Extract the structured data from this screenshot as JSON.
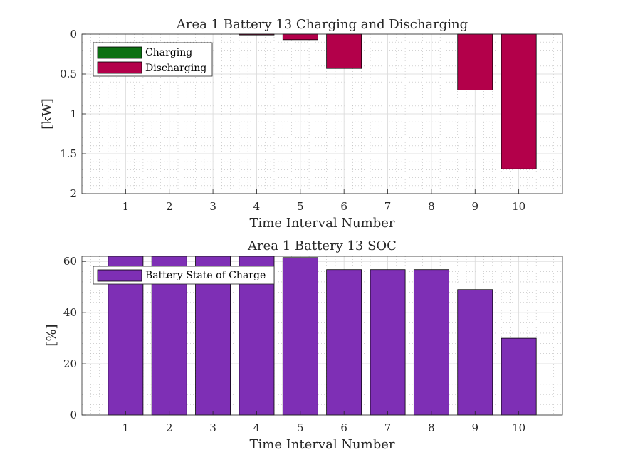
{
  "colors": {
    "charging": "#0c7012",
    "discharging": "#b3004a",
    "soc": "#7e2fb5",
    "axis": "#262626",
    "grid_major": "#d9d9d9",
    "grid_minor": "#b8b8b8",
    "background": "#ffffff"
  },
  "chart_data": [
    {
      "type": "bar",
      "title": "Area 1 Battery 13 Charging and Discharging",
      "xlabel": "Time Interval Number",
      "ylabel": "[kW]",
      "y_direction": "reversed",
      "xlim": [
        0,
        11
      ],
      "ylim": [
        0,
        2
      ],
      "x_ticks": [
        "1",
        "2",
        "3",
        "4",
        "5",
        "6",
        "7",
        "8",
        "9",
        "10"
      ],
      "y_ticks": [
        "0",
        "0.5",
        "1",
        "1.5",
        "2"
      ],
      "grid": "major and minor",
      "legend_position": "top-left",
      "categories": [
        1,
        2,
        3,
        4,
        5,
        6,
        7,
        8,
        9,
        10
      ],
      "series": [
        {
          "name": "Charging",
          "values": [
            0,
            0,
            0,
            0,
            0,
            0,
            0,
            0,
            0,
            0
          ]
        },
        {
          "name": "Discharging",
          "values": [
            0,
            0,
            0,
            0.01,
            0.07,
            0.43,
            0,
            0,
            0.7,
            1.69
          ]
        }
      ]
    },
    {
      "type": "bar",
      "title": "Area 1 Battery 13 SOC",
      "xlabel": "Time Interval Number",
      "ylabel": "[%]",
      "y_direction": "normal",
      "xlim": [
        0,
        11
      ],
      "ylim": [
        0,
        62
      ],
      "x_ticks": [
        "1",
        "2",
        "3",
        "4",
        "5",
        "6",
        "7",
        "8",
        "9",
        "10"
      ],
      "y_ticks": [
        "0",
        "20",
        "40",
        "60"
      ],
      "grid": "major and minor",
      "legend_position": "top-left",
      "categories": [
        1,
        2,
        3,
        4,
        5,
        6,
        7,
        8,
        9,
        10
      ],
      "series": [
        {
          "name": "Battery State of Charge",
          "values": [
            62,
            62,
            62,
            62,
            61.5,
            56.8,
            56.8,
            56.8,
            49,
            30
          ]
        }
      ]
    }
  ]
}
